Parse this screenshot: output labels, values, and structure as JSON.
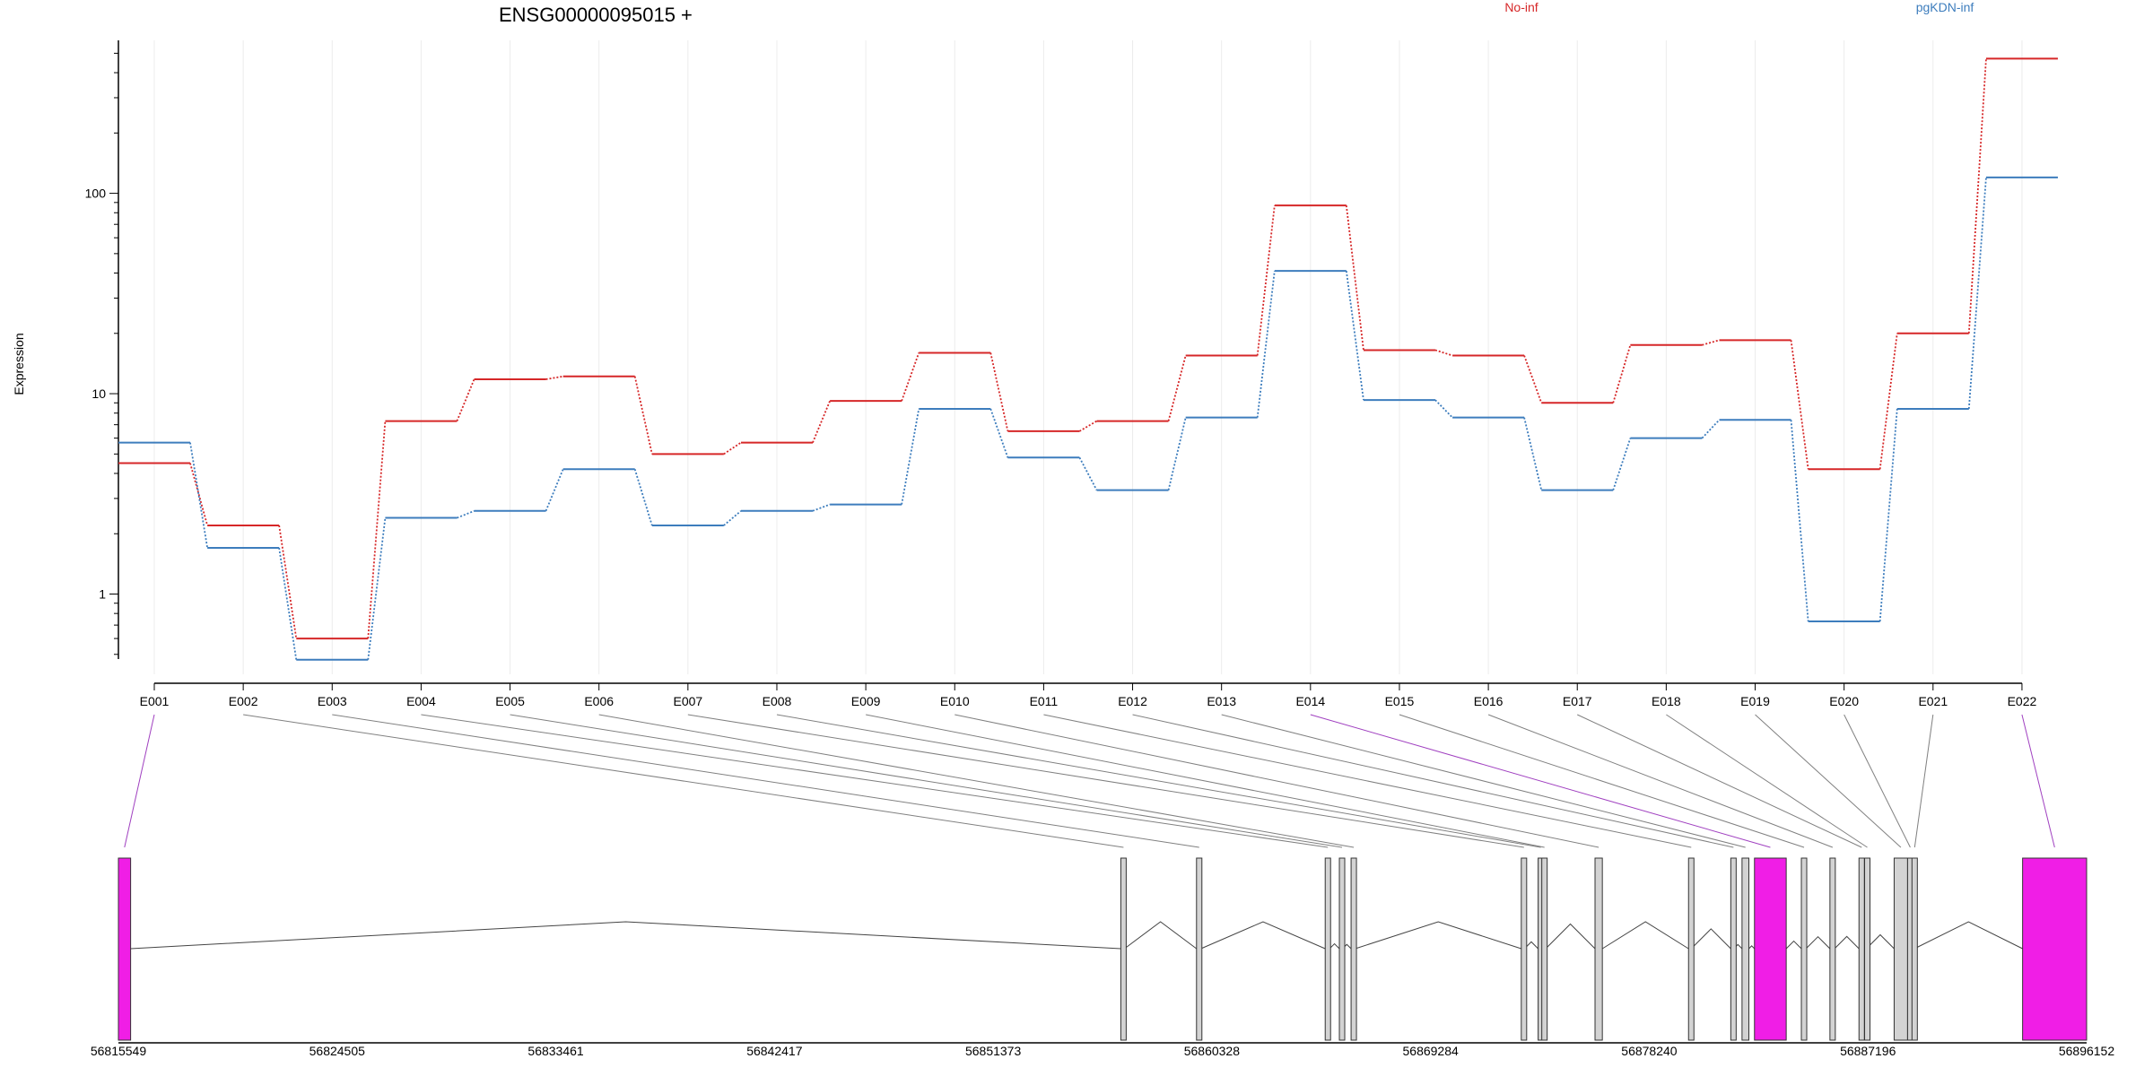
{
  "chart_data": {
    "type": "line",
    "title": "ENSG00000095015 +",
    "ylabel": "Expression",
    "xlabel": "",
    "yscale": "log",
    "ylim": [
      0.45,
      580
    ],
    "ytick_labels": [
      {
        "value": 1,
        "label": "1"
      },
      {
        "value": 10,
        "label": "10"
      },
      {
        "value": 100,
        "label": "100"
      }
    ],
    "grid": "vertical",
    "legend": "top",
    "categories": [
      "E001",
      "E002",
      "E003",
      "E004",
      "E005",
      "E006",
      "E007",
      "E008",
      "E009",
      "E010",
      "E011",
      "E012",
      "E013",
      "E014",
      "E015",
      "E016",
      "E017",
      "E018",
      "E019",
      "E020",
      "E021",
      "E022"
    ],
    "series": [
      {
        "name": "No-inf",
        "color": "#d62728",
        "values": [
          4.5,
          2.2,
          0.6,
          7.3,
          11.8,
          12.2,
          5.0,
          5.7,
          9.2,
          16.0,
          6.5,
          7.3,
          15.5,
          87,
          16.5,
          15.5,
          9.0,
          17.5,
          18.5,
          4.2,
          20,
          470
        ]
      },
      {
        "name": "pgKDN-inf",
        "color": "#3d7dbd",
        "values": [
          5.7,
          1.7,
          0.47,
          2.4,
          2.6,
          4.2,
          2.2,
          2.6,
          2.8,
          8.4,
          4.8,
          3.3,
          7.6,
          41,
          9.3,
          7.6,
          3.3,
          6.0,
          7.4,
          0.73,
          8.4,
          120
        ]
      }
    ],
    "gene_model": {
      "genomic_ticks": [
        "56815549",
        "56824505",
        "56833461",
        "56842417",
        "56851373",
        "56860328",
        "56869284",
        "56878240",
        "56887196",
        "56896152"
      ],
      "genomic_range": [
        56815549,
        56896152
      ],
      "exons": [
        {
          "id": "E001",
          "start": 56815549,
          "end": 56816049,
          "highlight": true
        },
        {
          "id": "E002",
          "start": 56856600,
          "end": 56856750,
          "highlight": false
        },
        {
          "id": "E003",
          "start": 56859700,
          "end": 56859880,
          "highlight": false
        },
        {
          "id": "E004",
          "start": 56864970,
          "end": 56865150,
          "highlight": false
        },
        {
          "id": "E005",
          "start": 56865550,
          "end": 56865680,
          "highlight": false
        },
        {
          "id": "E006",
          "start": 56866030,
          "end": 56866200,
          "highlight": false
        },
        {
          "id": "E007",
          "start": 56873000,
          "end": 56873130,
          "highlight": false
        },
        {
          "id": "E008",
          "start": 56873690,
          "end": 56873760,
          "highlight": false
        },
        {
          "id": "E009",
          "start": 56873840,
          "end": 56874000,
          "highlight": false
        },
        {
          "id": "E010",
          "start": 56876020,
          "end": 56876320,
          "highlight": false
        },
        {
          "id": "E011",
          "start": 56879850,
          "end": 56879960,
          "highlight": false
        },
        {
          "id": "E012",
          "start": 56881580,
          "end": 56881700,
          "highlight": false
        },
        {
          "id": "E013",
          "start": 56882040,
          "end": 56882320,
          "highlight": false
        },
        {
          "id": "E014",
          "start": 56882550,
          "end": 56883850,
          "highlight": true
        },
        {
          "id": "E015",
          "start": 56884470,
          "end": 56884660,
          "highlight": false
        },
        {
          "id": "E016",
          "start": 56885640,
          "end": 56885830,
          "highlight": false
        },
        {
          "id": "E017",
          "start": 56886830,
          "end": 56886980,
          "highlight": false
        },
        {
          "id": "E018",
          "start": 56887060,
          "end": 56887130,
          "highlight": false
        },
        {
          "id": "E019",
          "start": 56888270,
          "end": 56888820,
          "highlight": false
        },
        {
          "id": "E020",
          "start": 56888820,
          "end": 56889000,
          "highlight": false
        },
        {
          "id": "E021",
          "start": 56889000,
          "end": 56889100,
          "highlight": false
        },
        {
          "id": "E022",
          "start": 56893530,
          "end": 56896152,
          "highlight": true
        }
      ]
    }
  },
  "colors": {
    "highlight_exon": "#f01ee6",
    "exon_fill": "#d3d3d3",
    "highlight_connector": "#a040c0",
    "connector": "#808080"
  }
}
